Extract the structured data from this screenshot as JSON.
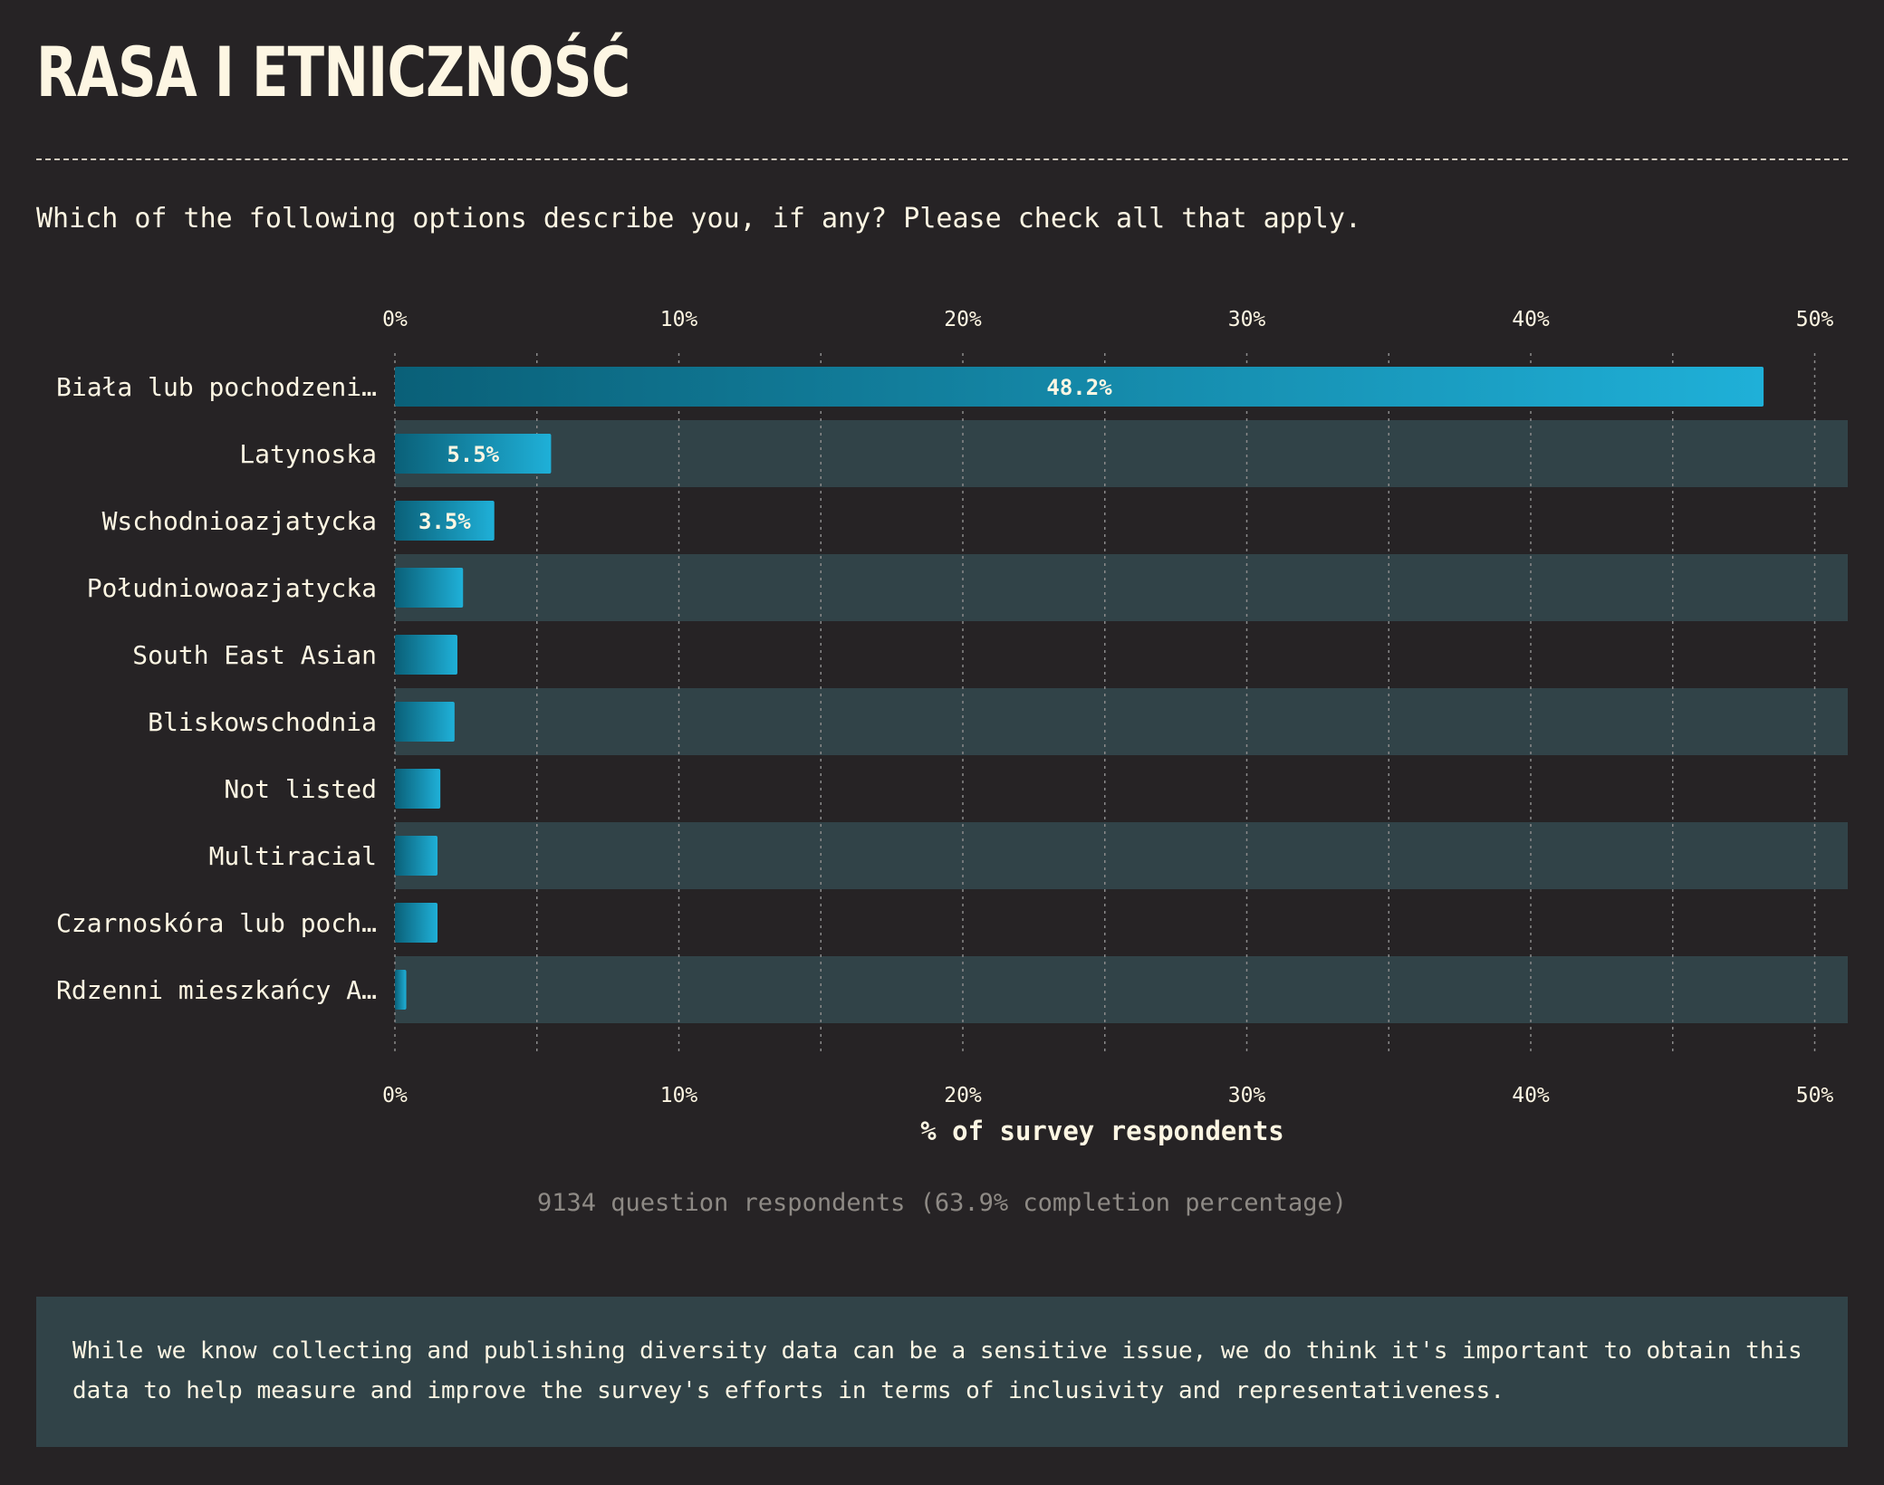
{
  "header": {
    "title": "RASA I ETNICZNOŚĆ",
    "question": "Which of the following options describe you, if any? Please check all that apply."
  },
  "chart_data": {
    "type": "bar",
    "orientation": "horizontal",
    "categories": [
      "Biała lub pochodzeni…",
      "Latynoska",
      "Wschodnioazjatycka",
      "Południowoazjatycka",
      "South East Asian",
      "Bliskowschodnia",
      "Not listed",
      "Multiracial",
      "Czarnoskóra lub poch…",
      "Rdzenni mieszkańcy A…"
    ],
    "values": [
      48.2,
      5.5,
      3.5,
      2.4,
      2.2,
      2.1,
      1.6,
      1.5,
      1.5,
      0.4
    ],
    "data_labels": [
      "48.2%",
      "5.5%",
      "3.5%",
      "",
      "",
      "",
      "",
      "",
      "",
      ""
    ],
    "xlabel": "% of survey respondents",
    "xlim": [
      0,
      51.3
    ],
    "ticks": [
      0,
      10,
      20,
      30,
      40,
      50
    ],
    "tick_labels": [
      "0%",
      "10%",
      "20%",
      "30%",
      "40%",
      "50%"
    ],
    "grid": true,
    "colors": {
      "bar_dark": "#0a6078",
      "bar_light": "#1fb0d8",
      "band": "#314348",
      "grid": "#8a8a8a"
    }
  },
  "footer": {
    "respondents": "9134 question respondents (63.9% completion percentage)",
    "note": "While we know collecting and publishing diversity data can be a sensitive issue, we do think it's important to obtain this data to help measure and improve the survey's efforts in terms of inclusivity and representativeness."
  }
}
